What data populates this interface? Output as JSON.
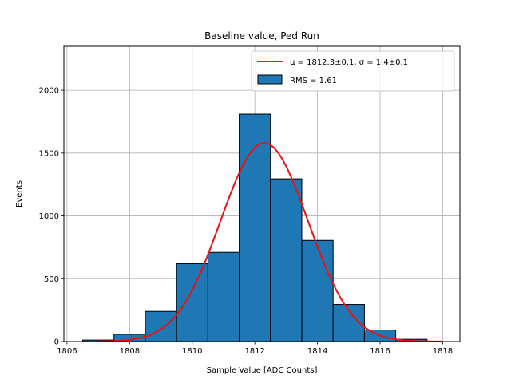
{
  "chart_data": {
    "type": "bar",
    "title": "Baseline value, Ped Run",
    "xlabel": "Sample Value [ADC Counts]",
    "ylabel": "Events",
    "xlim": [
      1805.9,
      1818.55
    ],
    "ylim": [
      0,
      2350
    ],
    "grid": true,
    "xticks": [
      1806,
      1808,
      1810,
      1812,
      1814,
      1816,
      1818
    ],
    "yticks": [
      0,
      500,
      1000,
      1500,
      2000
    ],
    "histogram": {
      "name": "RMS = 1.61",
      "color": "#1f77b4",
      "edgecolor": "#000000",
      "bins": [
        {
          "left": 1806.5,
          "right": 1807.5,
          "value": 12
        },
        {
          "left": 1807.5,
          "right": 1808.5,
          "value": 58
        },
        {
          "left": 1808.5,
          "right": 1809.5,
          "value": 240
        },
        {
          "left": 1809.5,
          "right": 1810.5,
          "value": 620
        },
        {
          "left": 1810.5,
          "right": 1811.5,
          "value": 710
        },
        {
          "left": 1811.5,
          "right": 1812.5,
          "value": 1810
        },
        {
          "left": 1812.5,
          "right": 1813.5,
          "value": 1295
        },
        {
          "left": 1813.5,
          "right": 1814.5,
          "value": 805
        },
        {
          "left": 1814.5,
          "right": 1815.5,
          "value": 295
        },
        {
          "left": 1815.5,
          "right": 1816.5,
          "value": 92
        },
        {
          "left": 1816.5,
          "right": 1817.5,
          "value": 18
        }
      ]
    },
    "fit": {
      "name": "μ = 1812.3±0.1, σ = 1.4±0.1",
      "color": "#ee1111",
      "amplitude": 1580,
      "mean": 1812.3,
      "sigma": 1.4,
      "x_from": 1807.0,
      "x_to": 1818.0
    },
    "legend": {
      "location": "upper right",
      "entries": [
        {
          "kind": "line",
          "label": "μ = 1812.3±0.1, σ = 1.4±0.1"
        },
        {
          "kind": "patch",
          "label": "RMS = 1.61"
        }
      ]
    }
  }
}
